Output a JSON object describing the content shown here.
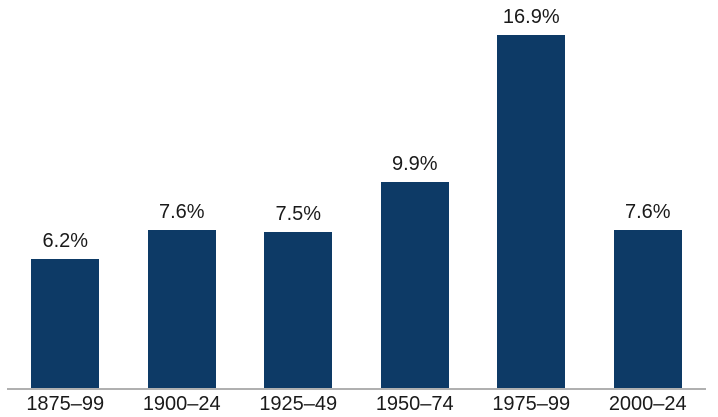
{
  "chart_data": {
    "type": "bar",
    "categories": [
      "1875–99",
      "1900–24",
      "1925–49",
      "1950–74",
      "1975–99",
      "2000–24"
    ],
    "values": [
      6.2,
      7.6,
      7.5,
      9.9,
      16.9,
      7.6
    ],
    "value_labels": [
      "6.2%",
      "7.6%",
      "7.5%",
      "9.9%",
      "16.9%",
      "7.6%"
    ],
    "ylim": [
      0,
      18
    ],
    "grid": false,
    "legend": false,
    "bar_color": "#0d3a66",
    "axis_line_color": "#b0b0b0",
    "label_color": "#1a1a1a",
    "background": "#ffffff"
  }
}
